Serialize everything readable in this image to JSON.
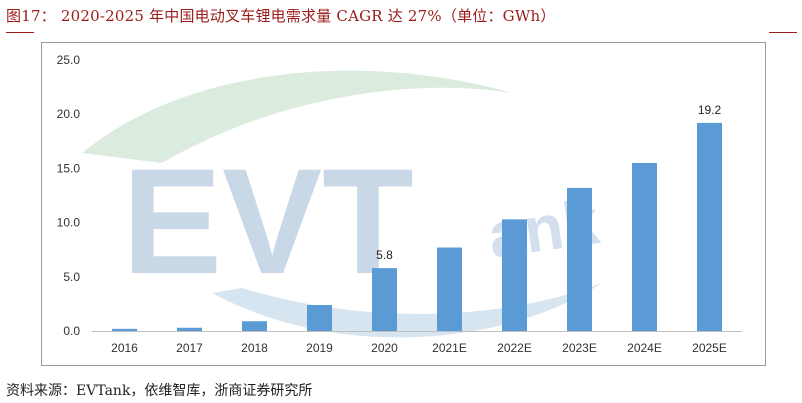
{
  "header": {
    "title": "图17： 2020-2025 年中国电动叉车锂电需求量 CAGR 达 27%（单位：GWh）"
  },
  "footer": {
    "source": "资料来源：EVTank，依维智库，浙商证券研究所"
  },
  "watermark": {
    "text_main": "EVT",
    "text_small": "ank"
  },
  "colors": {
    "bar": "#5b9bd5",
    "brand_red": "#9b1b1b",
    "axis": "#bfbfbf",
    "watermark_blue": "#b7cbe0",
    "watermark_green": "#cfe6d3"
  },
  "chart_data": {
    "type": "bar",
    "categories": [
      "2016",
      "2017",
      "2018",
      "2019",
      "2020",
      "2021E",
      "2022E",
      "2023E",
      "2024E",
      "2025E"
    ],
    "values": [
      0.2,
      0.3,
      0.9,
      2.4,
      5.8,
      7.7,
      10.3,
      13.2,
      15.5,
      19.2
    ],
    "data_labels": [
      {
        "index": 4,
        "text": "5.8"
      },
      {
        "index": 9,
        "text": "19.2"
      }
    ],
    "ylim": [
      0,
      25
    ],
    "yticks": [
      "0.0",
      "5.0",
      "10.0",
      "15.0",
      "20.0",
      "25.0"
    ],
    "grid": false,
    "legend": "none"
  }
}
